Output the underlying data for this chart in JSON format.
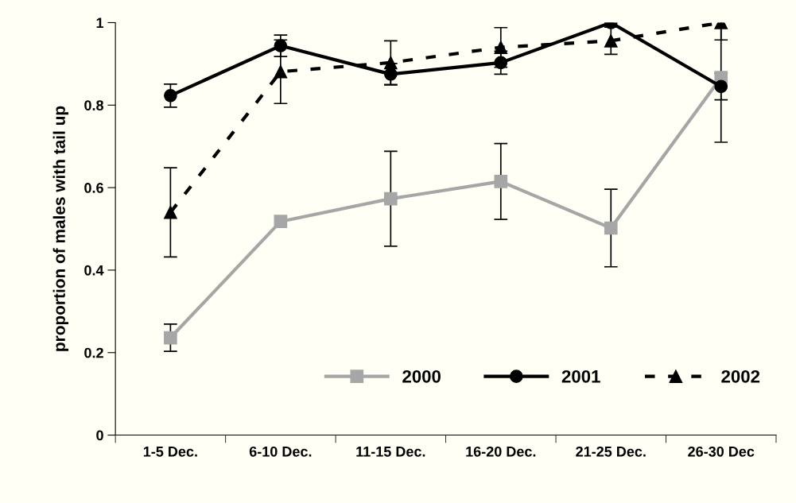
{
  "chart_data": {
    "type": "line",
    "ylabel": "proportion of males with tail up",
    "categories": [
      "1-5 Dec.",
      "6-10 Dec.",
      "11-15 Dec.",
      "16-20 Dec.",
      "21-25 Dec.",
      "26-30 Dec"
    ],
    "series": [
      {
        "name": "2000",
        "color": "#a6a6a6",
        "marker": "square",
        "line_style": "solid",
        "values": [
          0.236,
          0.518,
          0.573,
          0.615,
          0.502,
          0.867
        ],
        "errors": [
          0.033,
          null,
          0.115,
          0.092,
          0.094,
          0.157
        ]
      },
      {
        "name": "2001",
        "color": "#000000",
        "marker": "circle",
        "line_style": "solid",
        "values": [
          0.823,
          0.944,
          0.875,
          0.903,
          1.0,
          0.845
        ],
        "errors": [
          0.028,
          0.026,
          0.026,
          0.028,
          null,
          0.032
        ]
      },
      {
        "name": "2002",
        "color": "#000000",
        "marker": "triangle",
        "line_style": "dashed",
        "values": [
          0.54,
          0.881,
          0.903,
          0.94,
          0.956,
          1.0
        ],
        "errors": [
          0.108,
          0.077,
          0.053,
          0.048,
          0.033,
          0.042
        ]
      }
    ],
    "ylim": [
      0,
      1
    ],
    "yticks": [
      0,
      0.2,
      0.4,
      0.6,
      0.8,
      1
    ],
    "grid": false,
    "legend": "bottom right"
  }
}
